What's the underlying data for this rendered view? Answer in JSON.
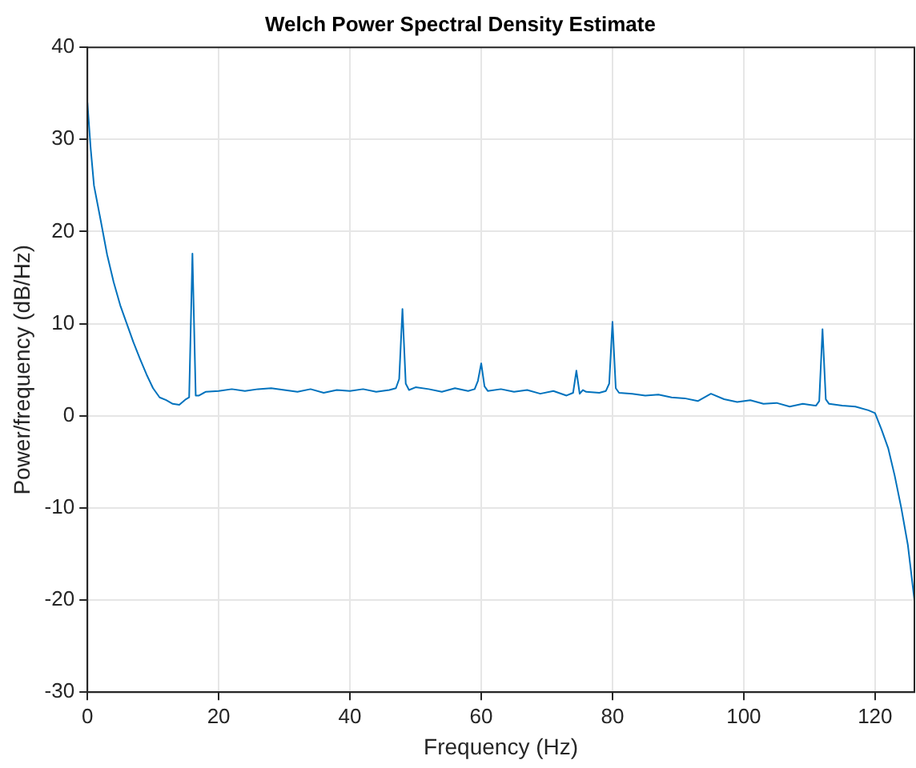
{
  "chart_data": {
    "type": "line",
    "title": "Welch Power Spectral Density Estimate",
    "xlabel": "Frequency (Hz)",
    "ylabel": "Power/frequency (dB/Hz)",
    "x": [
      0,
      0.5,
      1,
      2,
      3,
      4,
      5,
      6,
      7,
      8,
      9,
      10,
      11,
      12,
      13,
      14,
      15,
      15.5,
      16,
      16.5,
      17,
      18,
      20,
      22,
      24,
      26,
      28,
      30,
      32,
      34,
      36,
      38,
      40,
      42,
      44,
      46,
      47,
      47.5,
      48,
      48.5,
      49,
      50,
      52,
      54,
      56,
      58,
      59,
      59.5,
      60,
      60.5,
      61,
      63,
      65,
      67,
      69,
      71,
      73,
      74,
      74.5,
      75,
      75.5,
      76,
      78,
      79,
      79.5,
      80,
      80.5,
      81,
      83,
      85,
      87,
      89,
      91,
      93,
      95,
      97,
      99,
      101,
      103,
      105,
      107,
      109,
      110,
      111,
      111.5,
      112,
      112.5,
      113,
      115,
      117,
      119,
      120,
      121,
      122,
      123,
      124,
      125,
      126
    ],
    "series": [
      {
        "color": "#0072bd",
        "values": [
          34,
          29,
          25,
          21.3,
          17.5,
          14.5,
          12,
          10,
          8,
          6.2,
          4.5,
          3,
          2,
          1.7,
          1.3,
          1.2,
          1.8,
          2,
          17.6,
          2.2,
          2.2,
          2.6,
          2.7,
          2.9,
          2.7,
          2.9,
          3,
          2.8,
          2.6,
          2.9,
          2.5,
          2.8,
          2.7,
          2.9,
          2.6,
          2.8,
          3,
          4,
          11.6,
          3.5,
          2.8,
          3.1,
          2.9,
          2.6,
          3,
          2.7,
          2.9,
          3.8,
          5.7,
          3.2,
          2.7,
          2.9,
          2.6,
          2.8,
          2.4,
          2.7,
          2.2,
          2.5,
          4.9,
          2.4,
          2.8,
          2.6,
          2.5,
          2.7,
          3.5,
          10.2,
          3,
          2.5,
          2.4,
          2.2,
          2.3,
          2.0,
          1.9,
          1.6,
          2.4,
          1.8,
          1.5,
          1.7,
          1.3,
          1.4,
          1.0,
          1.3,
          1.2,
          1.1,
          1.6,
          9.4,
          1.8,
          1.3,
          1.1,
          1.0,
          0.6,
          0.3,
          -1.5,
          -3.5,
          -6.5,
          -10,
          -14,
          -20
        ]
      }
    ],
    "xlim": [
      0,
      126
    ],
    "xticks": [
      0,
      20,
      40,
      60,
      80,
      100,
      120
    ],
    "ylim": [
      -30,
      40
    ],
    "yticks": [
      -30,
      -20,
      -10,
      0,
      10,
      20,
      30,
      40
    ],
    "grid": true,
    "marker": "none",
    "line_style": "solid"
  }
}
